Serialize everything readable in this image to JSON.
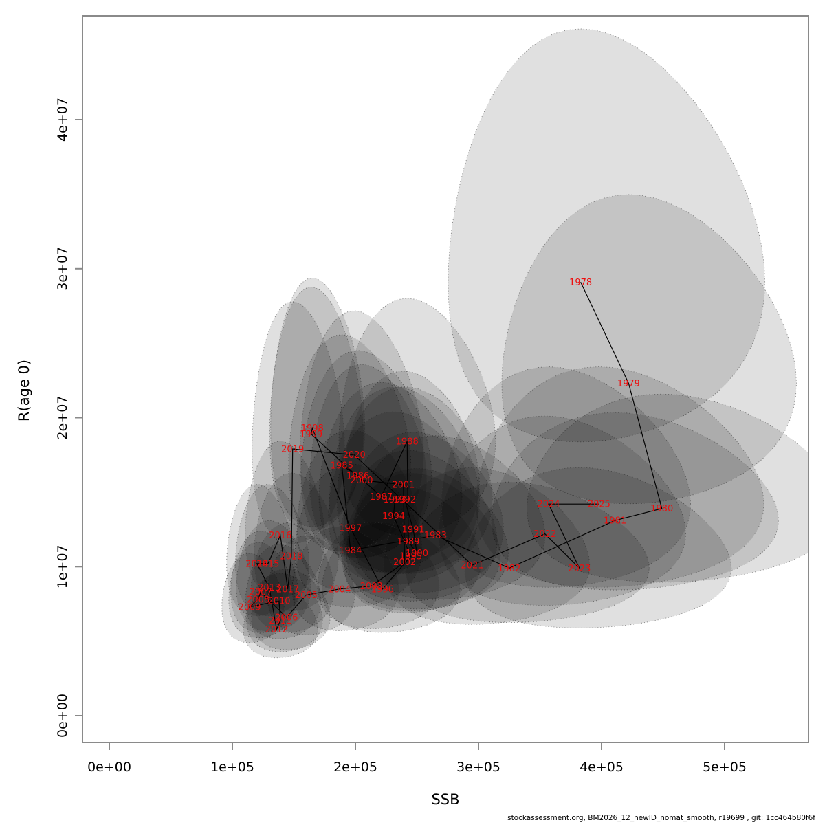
{
  "chart_data": {
    "type": "scatter",
    "title": "",
    "xlabel": "SSB",
    "ylabel": "R(age 0)",
    "grid": false,
    "legend": "none",
    "xlim": [
      -22000,
      568000
    ],
    "ylim": [
      -1800000,
      47000000
    ],
    "x_ticks": [
      {
        "label": "0e+00",
        "value": 0
      },
      {
        "label": "1e+05",
        "value": 100000
      },
      {
        "label": "2e+05",
        "value": 200000
      },
      {
        "label": "3e+05",
        "value": 300000
      },
      {
        "label": "4e+05",
        "value": 400000
      },
      {
        "label": "5e+05",
        "value": 500000
      }
    ],
    "y_ticks": [
      {
        "label": "0e+00",
        "value": 0
      },
      {
        "label": "1e+07",
        "value": 10000000
      },
      {
        "label": "2e+07",
        "value": 20000000
      },
      {
        "label": "3e+07",
        "value": 30000000
      },
      {
        "label": "4e+07",
        "value": 40000000
      }
    ],
    "label_color": "#ee0d0d",
    "line_color": "#000000",
    "ellipse_fill": "#000000",
    "ellipse_fill_alpha": 0.12,
    "ellipse_stroke": "rgba(60,60,60,0.65)",
    "points": [
      {
        "year": 1978,
        "ssb": 383000,
        "r": 29100000,
        "sx": 0.33,
        "sy": 0.46
      },
      {
        "year": 1979,
        "ssb": 422000,
        "r": 22300000,
        "sx": 0.28,
        "sy": 0.45
      },
      {
        "year": 1980,
        "ssb": 449000,
        "r": 13900000,
        "sx": 0.28,
        "sy": 0.44
      },
      {
        "year": 1981,
        "ssb": 411000,
        "r": 13100000,
        "sx": 0.28,
        "sy": 0.44
      },
      {
        "year": 1982,
        "ssb": 325000,
        "r": 9900000,
        "sx": 0.3,
        "sy": 0.46
      },
      {
        "year": 1983,
        "ssb": 265000,
        "r": 12100000,
        "sx": 0.29,
        "sy": 0.44
      },
      {
        "year": 1984,
        "ssb": 196000,
        "r": 11100000,
        "sx": 0.26,
        "sy": 0.42
      },
      {
        "year": 1985,
        "ssb": 189000,
        "r": 16800000,
        "sx": 0.26,
        "sy": 0.42
      },
      {
        "year": 1986,
        "ssb": 202000,
        "r": 16100000,
        "sx": 0.26,
        "sy": 0.42
      },
      {
        "year": 1987,
        "ssb": 221000,
        "r": 14700000,
        "sx": 0.26,
        "sy": 0.42
      },
      {
        "year": 1988,
        "ssb": 242000,
        "r": 18400000,
        "sx": 0.26,
        "sy": 0.42
      },
      {
        "year": 1989,
        "ssb": 243000,
        "r": 11700000,
        "sx": 0.26,
        "sy": 0.42
      },
      {
        "year": 1990,
        "ssb": 250000,
        "r": 10900000,
        "sx": 0.26,
        "sy": 0.42
      },
      {
        "year": 1991,
        "ssb": 247000,
        "r": 12500000,
        "sx": 0.26,
        "sy": 0.42
      },
      {
        "year": 1992,
        "ssb": 240000,
        "r": 14500000,
        "sx": 0.26,
        "sy": 0.42
      },
      {
        "year": 1993,
        "ssb": 232000,
        "r": 14500000,
        "sx": 0.26,
        "sy": 0.42
      },
      {
        "year": 1994,
        "ssb": 231000,
        "r": 13400000,
        "sx": 0.26,
        "sy": 0.42
      },
      {
        "year": 1995,
        "ssb": 245000,
        "r": 10700000,
        "sx": 0.26,
        "sy": 0.42
      },
      {
        "year": 1996,
        "ssb": 222000,
        "r": 8500000,
        "sx": 0.25,
        "sy": 0.42
      },
      {
        "year": 1997,
        "ssb": 196000,
        "r": 12600000,
        "sx": 0.25,
        "sy": 0.42
      },
      {
        "year": 1998,
        "ssb": 165000,
        "r": 19300000,
        "sx": 0.23,
        "sy": 0.42
      },
      {
        "year": 1999,
        "ssb": 164000,
        "r": 18900000,
        "sx": 0.23,
        "sy": 0.42
      },
      {
        "year": 2000,
        "ssb": 205000,
        "r": 15800000,
        "sx": 0.23,
        "sy": 0.4
      },
      {
        "year": 2001,
        "ssb": 239000,
        "r": 15500000,
        "sx": 0.23,
        "sy": 0.4
      },
      {
        "year": 2002,
        "ssb": 240000,
        "r": 10300000,
        "sx": 0.23,
        "sy": 0.4
      },
      {
        "year": 2003,
        "ssb": 213000,
        "r": 8700000,
        "sx": 0.23,
        "sy": 0.4
      },
      {
        "year": 2004,
        "ssb": 187000,
        "r": 8500000,
        "sx": 0.23,
        "sy": 0.4
      },
      {
        "year": 2005,
        "ssb": 160000,
        "r": 8100000,
        "sx": 0.22,
        "sy": 0.4
      },
      {
        "year": 2006,
        "ssb": 144000,
        "r": 6600000,
        "sx": 0.22,
        "sy": 0.4
      },
      {
        "year": 2007,
        "ssb": 123000,
        "r": 8300000,
        "sx": 0.22,
        "sy": 0.4
      },
      {
        "year": 2008,
        "ssb": 121000,
        "r": 7800000,
        "sx": 0.22,
        "sy": 0.4
      },
      {
        "year": 2009,
        "ssb": 114000,
        "r": 7300000,
        "sx": 0.22,
        "sy": 0.4
      },
      {
        "year": 2010,
        "ssb": 138000,
        "r": 7700000,
        "sx": 0.22,
        "sy": 0.4
      },
      {
        "year": 2011,
        "ssb": 139000,
        "r": 6400000,
        "sx": 0.22,
        "sy": 0.4
      },
      {
        "year": 2012,
        "ssb": 136000,
        "r": 5800000,
        "sx": 0.22,
        "sy": 0.4
      },
      {
        "year": 2013,
        "ssb": 130000,
        "r": 8600000,
        "sx": 0.23,
        "sy": 0.42
      },
      {
        "year": 2014,
        "ssb": 120000,
        "r": 10200000,
        "sx": 0.23,
        "sy": 0.42
      },
      {
        "year": 2015,
        "ssb": 129000,
        "r": 10200000,
        "sx": 0.23,
        "sy": 0.42
      },
      {
        "year": 2016,
        "ssb": 139000,
        "r": 12100000,
        "sx": 0.23,
        "sy": 0.42
      },
      {
        "year": 2017,
        "ssb": 145000,
        "r": 8500000,
        "sx": 0.23,
        "sy": 0.42
      },
      {
        "year": 2018,
        "ssb": 148000,
        "r": 10700000,
        "sx": 0.23,
        "sy": 0.42
      },
      {
        "year": 2019,
        "ssb": 149000,
        "r": 17900000,
        "sx": 0.25,
        "sy": 0.44
      },
      {
        "year": 2020,
        "ssb": 199000,
        "r": 17500000,
        "sx": 0.25,
        "sy": 0.44
      },
      {
        "year": 2021,
        "ssb": 295000,
        "r": 10100000,
        "sx": 0.28,
        "sy": 0.5
      },
      {
        "year": 2022,
        "ssb": 354000,
        "r": 12200000,
        "sx": 0.28,
        "sy": 0.5
      },
      {
        "year": 2023,
        "ssb": 382000,
        "r": 9900000,
        "sx": 0.28,
        "sy": 0.52
      },
      {
        "year": 2024,
        "ssb": 357000,
        "r": 14200000,
        "sx": 0.28,
        "sy": 0.5
      },
      {
        "year": 2025,
        "ssb": 398000,
        "r": 14200000,
        "sx": 0.29,
        "sy": 0.5
      }
    ]
  },
  "footer": {
    "note": "stockassessment.org, BM2026_12_newID_nomat_smooth, r19699 , git: 1cc464b80f6f"
  }
}
